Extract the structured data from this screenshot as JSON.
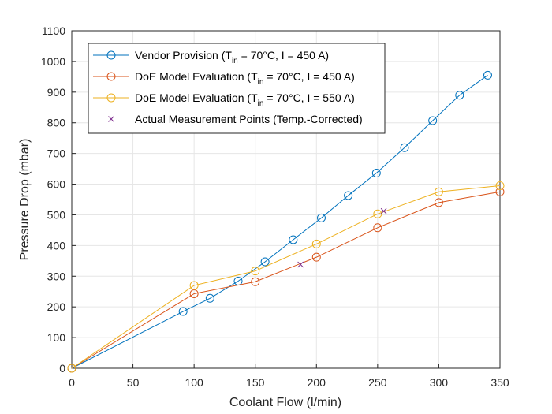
{
  "chart_data": {
    "type": "line",
    "title": "",
    "xlabel": "Coolant Flow (l/min)",
    "ylabel": "Pressure Drop (mbar)",
    "xlim": [
      0,
      350
    ],
    "ylim": [
      0,
      1100
    ],
    "xticks": [
      0,
      50,
      100,
      150,
      200,
      250,
      300,
      350
    ],
    "yticks": [
      0,
      100,
      200,
      300,
      400,
      500,
      600,
      700,
      800,
      900,
      1000,
      1100
    ],
    "grid": true,
    "legend_position": "top-left",
    "series": [
      {
        "name": "Vendor Provision (T_in = 70°C, I = 450 A)",
        "legend_parts": [
          "Vendor Provision (T",
          "in",
          " = 70°C, I = 450 A)"
        ],
        "color": "#0072BD",
        "marker": "circle",
        "line": true,
        "x": [
          0,
          91,
          113,
          136,
          158,
          181,
          204,
          226,
          249,
          272,
          295,
          317,
          340
        ],
        "y": [
          0,
          185,
          228,
          284,
          347,
          419,
          490,
          563,
          636,
          719,
          807,
          890,
          955
        ]
      },
      {
        "name": "DoE Model Evaluation (T_in = 70°C, I = 450 A)",
        "legend_parts": [
          "DoE Model Evaluation (T",
          "in",
          " = 70°C, I = 450 A)"
        ],
        "color": "#D95319",
        "marker": "circle",
        "line": true,
        "x": [
          0,
          100,
          150,
          200,
          250,
          300,
          350
        ],
        "y": [
          0,
          243,
          282,
          362,
          458,
          540,
          575
        ]
      },
      {
        "name": "DoE Model Evaluation (T_in = 70°C, I = 550 A)",
        "legend_parts": [
          "DoE Model Evaluation (T",
          "in",
          " = 70°C, I = 550 A)"
        ],
        "color": "#EDB120",
        "marker": "circle",
        "line": true,
        "x": [
          0,
          100,
          150,
          200,
          250,
          300,
          350
        ],
        "y": [
          0,
          270,
          317,
          405,
          503,
          575,
          595
        ]
      },
      {
        "name": "Actual Measurement Points (Temp.-Corrected)",
        "legend_parts": [
          "Actual Measurement Points (Temp.-Corrected)",
          "",
          ""
        ],
        "color": "#7E2F8E",
        "marker": "x",
        "line": false,
        "x": [
          187,
          255
        ],
        "y": [
          338,
          512
        ]
      }
    ]
  }
}
